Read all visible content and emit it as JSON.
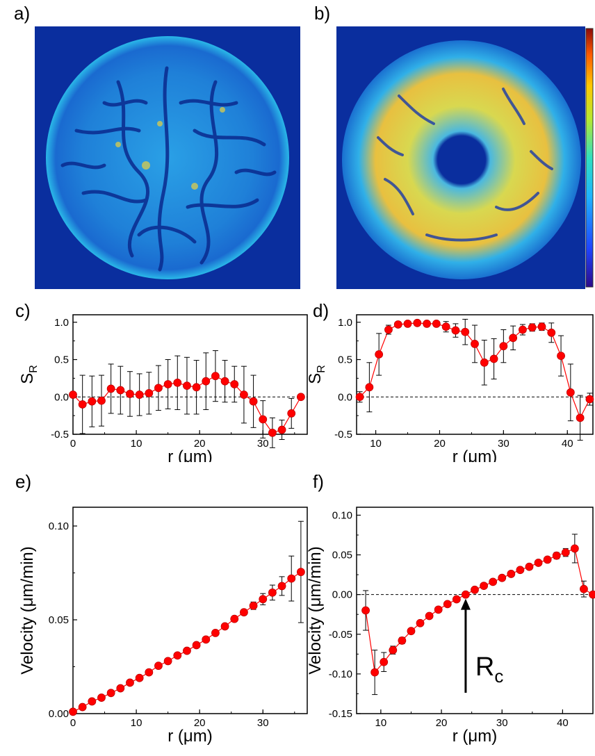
{
  "panel_labels": {
    "a": "a)",
    "b": "b)",
    "c": "c)",
    "d": "d)",
    "e": "e)",
    "f": "f)"
  },
  "heatmap_colors": {
    "background": "#0a2e9e",
    "mid": "#28a8e8",
    "high": "#f0d040",
    "colorbar": [
      "#2b0a8a",
      "#1f45ff",
      "#1fb4ff",
      "#30e0c0",
      "#b8e830",
      "#ffc800",
      "#ff5a00",
      "#8a0a0a"
    ]
  },
  "annotation": {
    "main": "R",
    "sub": "c"
  },
  "chart_data": [
    {
      "id": "c",
      "type": "scatter",
      "xlabel": "r (μm)",
      "ylabel": "S",
      "ylabel_sub": "R",
      "xlim": [
        0,
        37
      ],
      "ylim": [
        -0.5,
        1.1
      ],
      "xticks": [
        "0",
        "10",
        "20",
        "30"
      ],
      "xtick_values": [
        0,
        10,
        20,
        30
      ],
      "yticks": [
        "-0.5",
        "0.0",
        "0.5",
        "1.0"
      ],
      "ytick_values": [
        -0.5,
        0.0,
        0.5,
        1.0
      ],
      "reference_line": 0,
      "series": [
        {
          "color": "#ff0000",
          "x": [
            0,
            1.5,
            3,
            4.5,
            6,
            7.5,
            9,
            10.5,
            12,
            13.5,
            15,
            16.5,
            18,
            19.5,
            21,
            22.5,
            24,
            25.5,
            27,
            28.5,
            30,
            31.5,
            33,
            34.5,
            36
          ],
          "y": [
            0.03,
            -0.1,
            -0.06,
            -0.05,
            0.11,
            0.09,
            0.04,
            0.03,
            0.05,
            0.12,
            0.17,
            0.19,
            0.15,
            0.13,
            0.21,
            0.28,
            0.21,
            0.17,
            0.03,
            -0.06,
            -0.3,
            -0.48,
            -0.44,
            -0.22,
            0.0
          ],
          "err": [
            0,
            0.39,
            0.34,
            0.34,
            0.33,
            0.32,
            0.3,
            0.28,
            0.28,
            0.3,
            0.33,
            0.36,
            0.38,
            0.36,
            0.38,
            0.34,
            0.28,
            0.24,
            0.38,
            0.35,
            0.25,
            0.2,
            0.13,
            0.2,
            0
          ]
        }
      ]
    },
    {
      "id": "d",
      "type": "scatter",
      "xlabel": "r (μm)",
      "ylabel": "S",
      "ylabel_sub": "R",
      "xlim": [
        7,
        44
      ],
      "ylim": [
        -0.5,
        1.1
      ],
      "xticks": [
        "10",
        "20",
        "30",
        "40"
      ],
      "xtick_values": [
        10,
        20,
        30,
        40
      ],
      "yticks": [
        "-0.5",
        "0.0",
        "0.5",
        "1.0"
      ],
      "ytick_values": [
        -0.5,
        0.0,
        0.5,
        1.0
      ],
      "reference_line": 0,
      "series": [
        {
          "color": "#ff0000",
          "x": [
            7.5,
            9,
            10.5,
            12,
            13.5,
            15,
            16.5,
            18,
            19.5,
            21,
            22.5,
            24,
            25.5,
            27,
            28.5,
            30,
            31.5,
            33,
            34.5,
            36,
            37.5,
            39,
            40.5,
            42,
            43.5
          ],
          "y": [
            0.0,
            0.13,
            0.57,
            0.9,
            0.97,
            0.98,
            0.99,
            0.98,
            0.98,
            0.94,
            0.89,
            0.87,
            0.71,
            0.46,
            0.51,
            0.68,
            0.79,
            0.9,
            0.93,
            0.94,
            0.86,
            0.55,
            0.06,
            -0.28,
            -0.03
          ],
          "err": [
            0.07,
            0.33,
            0.28,
            0.06,
            0.03,
            0.02,
            0.01,
            0.02,
            0.02,
            0.07,
            0.09,
            0.17,
            0.25,
            0.3,
            0.27,
            0.22,
            0.16,
            0.07,
            0.05,
            0.05,
            0.13,
            0.27,
            0.38,
            0.3,
            0.08
          ]
        }
      ]
    },
    {
      "id": "e",
      "type": "scatter",
      "xlabel": "r (μm)",
      "ylabel": "Velocity (μm/min)",
      "xlim": [
        0,
        37
      ],
      "ylim": [
        0,
        0.11
      ],
      "xticks": [
        "0",
        "10",
        "20",
        "30"
      ],
      "xtick_values": [
        0,
        10,
        20,
        30
      ],
      "yticks": [
        "0.00",
        "0.05",
        "0.10"
      ],
      "ytick_values": [
        0.0,
        0.05,
        0.1
      ],
      "series": [
        {
          "color": "#ff0000",
          "x": [
            0,
            1.5,
            3,
            4.5,
            6,
            7.5,
            9,
            10.5,
            12,
            13.5,
            15,
            16.5,
            18,
            19.5,
            21,
            22.5,
            24,
            25.5,
            27,
            28.5,
            30,
            31.5,
            33,
            34.5,
            36
          ],
          "y": [
            0.001,
            0.0035,
            0.0065,
            0.0085,
            0.011,
            0.0135,
            0.0165,
            0.019,
            0.022,
            0.0255,
            0.028,
            0.031,
            0.0335,
            0.0365,
            0.0395,
            0.043,
            0.0465,
            0.0505,
            0.054,
            0.0575,
            0.061,
            0.0645,
            0.068,
            0.072,
            0.0755
          ],
          "err": [
            0,
            0.0005,
            0.0005,
            0.0005,
            0.0005,
            0.0005,
            0.0005,
            0.0005,
            0.0005,
            0.0005,
            0.0005,
            0.0005,
            0.0005,
            0.001,
            0.001,
            0.001,
            0.001,
            0.001,
            0.0015,
            0.002,
            0.003,
            0.004,
            0.005,
            0.012,
            0.027
          ]
        }
      ]
    },
    {
      "id": "f",
      "type": "scatter",
      "xlabel": "r (μm)",
      "ylabel": "Velocity (μm/min)",
      "xlim": [
        6,
        45
      ],
      "ylim": [
        -0.15,
        0.11
      ],
      "xticks": [
        "10",
        "20",
        "30",
        "40"
      ],
      "xtick_values": [
        10,
        20,
        30,
        40
      ],
      "yticks": [
        "-0.15",
        "-0.10",
        "-0.05",
        "0.00",
        "0.05",
        "0.10"
      ],
      "ytick_values": [
        -0.15,
        -0.1,
        -0.05,
        0.0,
        0.05,
        0.1
      ],
      "reference_line": 0,
      "arrow_at_x": 24,
      "series": [
        {
          "color": "#ff0000",
          "x": [
            7.5,
            9,
            10.5,
            12,
            13.5,
            15,
            16.5,
            18,
            19.5,
            21,
            22.5,
            24,
            25.5,
            27,
            28.5,
            30,
            31.5,
            33,
            34.5,
            36,
            37.5,
            39,
            40.5,
            42,
            43.5,
            45
          ],
          "y": [
            -0.02,
            -0.098,
            -0.085,
            -0.07,
            -0.058,
            -0.046,
            -0.036,
            -0.027,
            -0.019,
            -0.012,
            -0.006,
            0.0,
            0.006,
            0.011,
            0.016,
            0.021,
            0.026,
            0.031,
            0.035,
            0.04,
            0.044,
            0.049,
            0.053,
            0.058,
            0.007,
            0.0
          ],
          "err": [
            0.025,
            0.028,
            0.012,
            0.005,
            0.004,
            0.003,
            0.003,
            0.002,
            0.002,
            0.002,
            0.002,
            0.002,
            0.002,
            0.002,
            0.002,
            0.002,
            0.002,
            0.002,
            0.002,
            0.003,
            0.003,
            0.004,
            0.005,
            0.018,
            0.01,
            0.002
          ]
        }
      ]
    }
  ]
}
